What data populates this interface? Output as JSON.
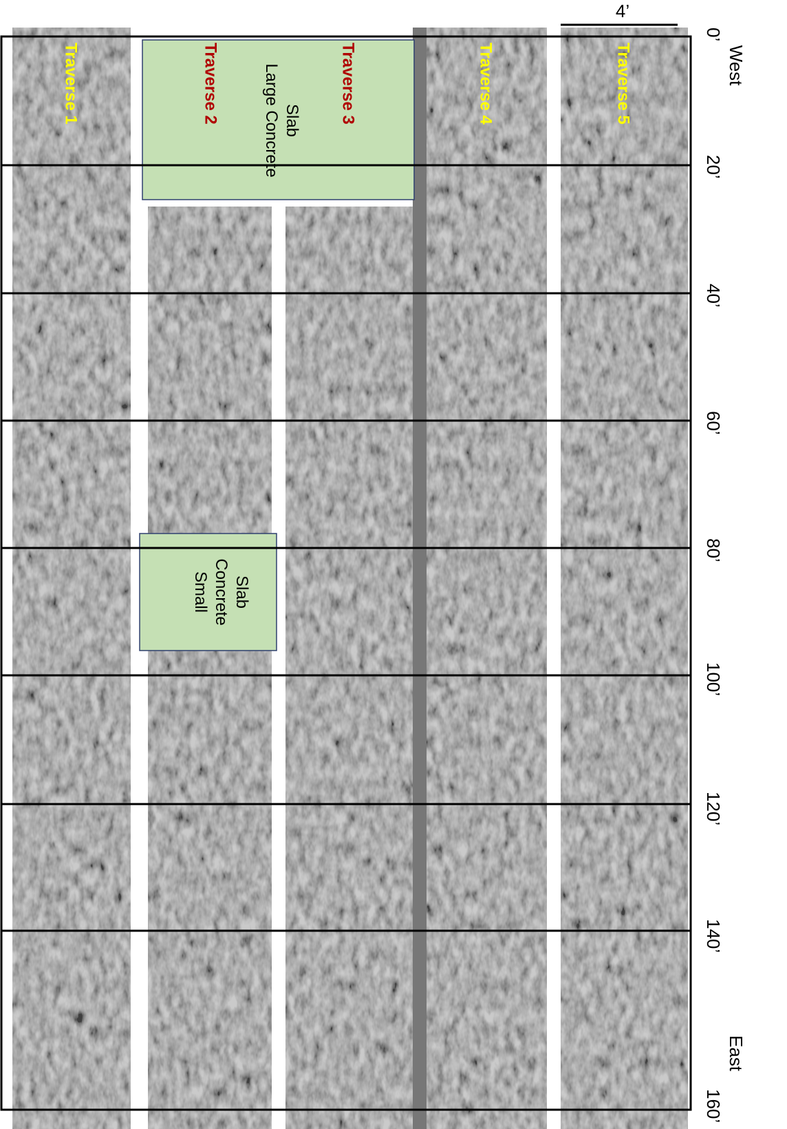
{
  "scale_bar": {
    "label": "4’"
  },
  "ends": {
    "west": "West",
    "east": "East"
  },
  "distance_labels": [
    "0’",
    "20’",
    "40’",
    "60’",
    "80’",
    "100’",
    "120’",
    "140’",
    "160’"
  ],
  "traverses": [
    "Traverse 1",
    "Traverse 2",
    "Traverse 3",
    "Traverse 4",
    "Traverse 5"
  ],
  "slabs": {
    "large": "Large Concrete Slab",
    "small": "Small Concrete Slab"
  }
}
